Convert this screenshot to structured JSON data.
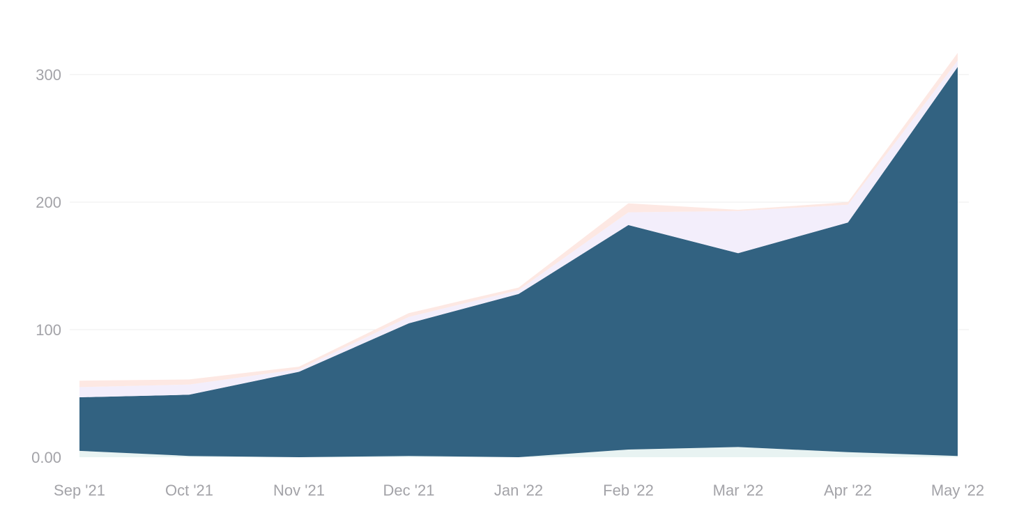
{
  "chart_data": {
    "type": "area",
    "stacked": true,
    "title": "",
    "xlabel": "",
    "ylabel": "",
    "categories": [
      "Sep '21",
      "Oct '21",
      "Nov '21",
      "Dec '21",
      "Jan '22",
      "Feb '22",
      "Mar '22",
      "Apr '22",
      "May '22"
    ],
    "ylim": [
      -8,
      335
    ],
    "yticks": [
      0,
      100,
      200,
      300
    ],
    "ytick_labels": [
      "0.00",
      "100",
      "200",
      "300"
    ],
    "grid": true,
    "legend": "none",
    "series": [
      {
        "color": "#e8f3f2",
        "values": [
          5,
          1,
          0,
          1,
          0,
          6,
          8,
          4,
          1
        ]
      },
      {
        "color": "#326281",
        "values": [
          42,
          48,
          67,
          104,
          128,
          176,
          152,
          180,
          305
        ]
      },
      {
        "color": "#f3eefb",
        "values": [
          8,
          8,
          2,
          5,
          3,
          10,
          33,
          14,
          5
        ]
      },
      {
        "color": "#fde8e3",
        "values": [
          5,
          4,
          2,
          3,
          2,
          7,
          1,
          2,
          6
        ]
      }
    ]
  }
}
